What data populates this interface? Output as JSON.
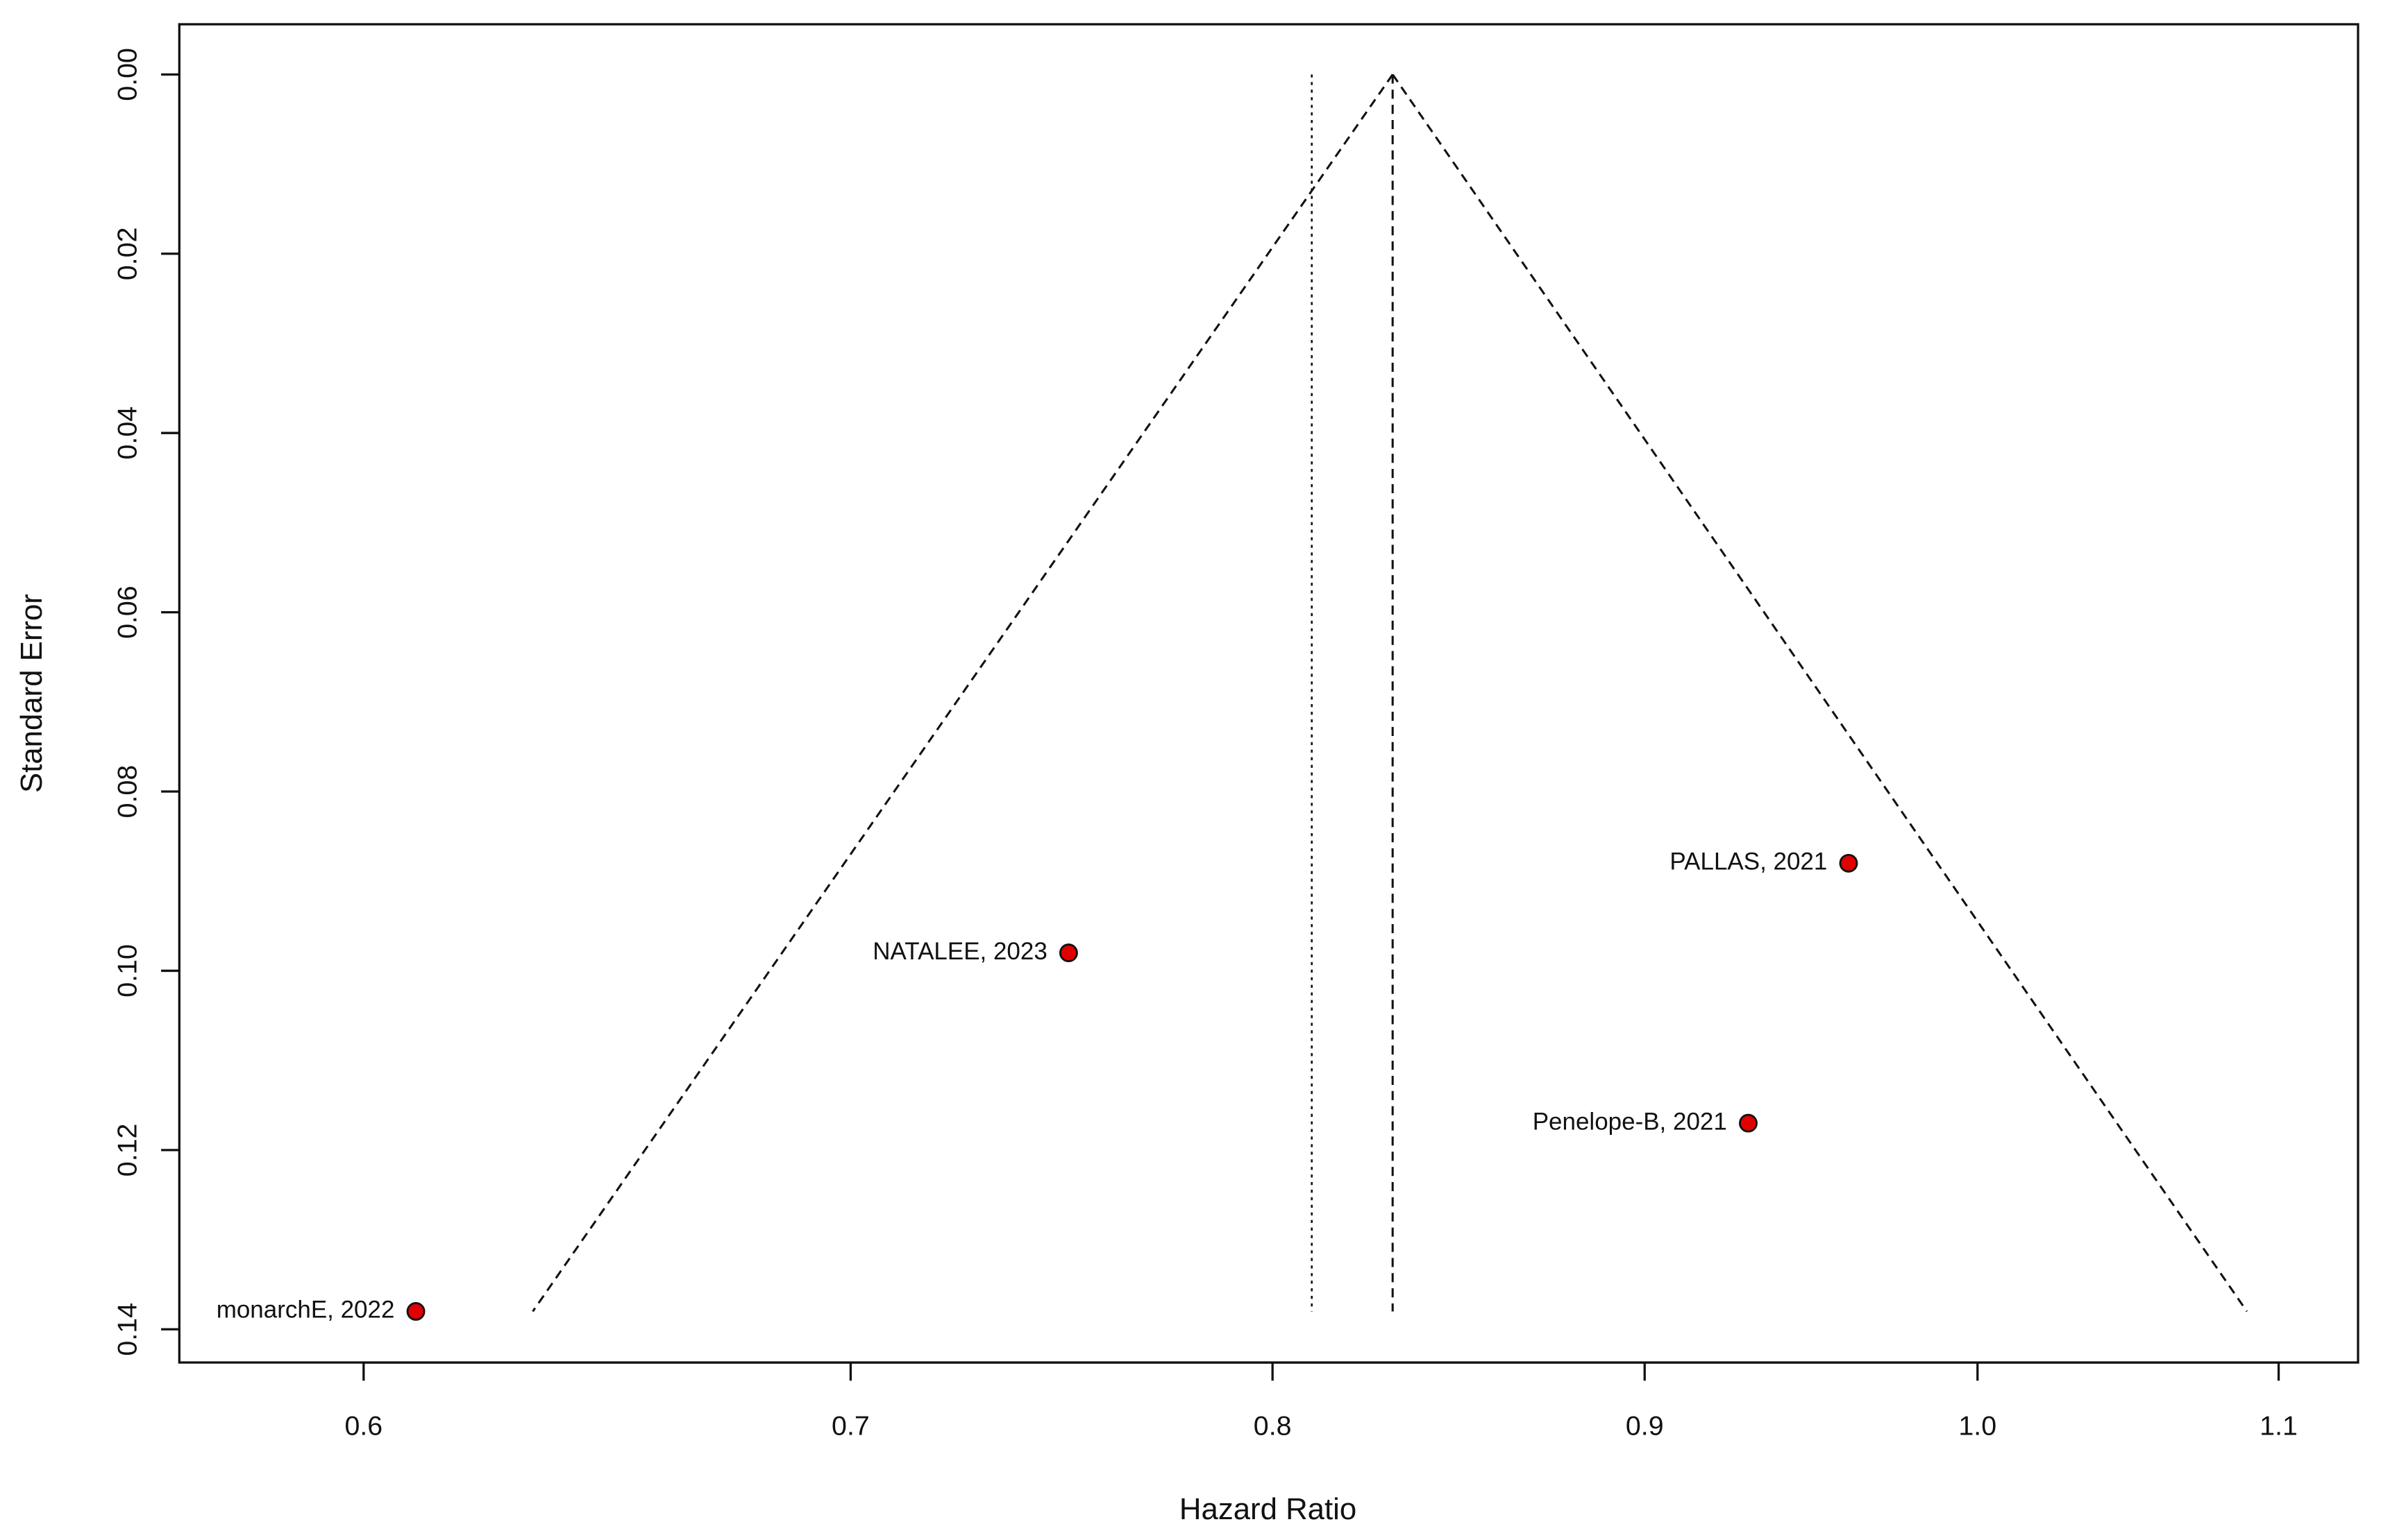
{
  "chart_data": {
    "type": "scatter",
    "x_label": "Hazard Ratio",
    "y_label": "Standard Error",
    "x_log": true,
    "y_reversed": true,
    "xlim": [
      0.566,
      1.128
    ],
    "ylim": [
      -0.0056,
      0.1437
    ],
    "xticks": [
      0.6,
      0.7,
      0.8,
      0.9,
      {
        "value": 1,
        "label": "1.0"
      },
      1.1
    ],
    "yticks": [
      {
        "value": 0,
        "label": "0.00"
      },
      {
        "value": 0.02,
        "label": "0.02"
      },
      {
        "value": 0.04,
        "label": "0.04"
      },
      {
        "value": 0.06,
        "label": "0.06"
      },
      {
        "value": 0.08,
        "label": "0.08"
      },
      {
        "value": 0.1,
        "label": "0.10"
      },
      {
        "value": 0.12,
        "label": "0.12"
      },
      {
        "value": 0.14,
        "label": "0.14"
      }
    ],
    "point_labels": [
      "PALLAS, 2021",
      "NATALEE, 2023",
      "Penelope-B, 2021",
      "monarchE, 2022"
    ],
    "x": [
      0.96,
      0.75,
      0.93,
      0.61
    ],
    "values": [
      0.088,
      0.098,
      0.117,
      0.138
    ],
    "color": "#e00000",
    "pooled_estimate": 0.831,
    "reference_line": 0.81,
    "funnel": {
      "se_max": 0.138,
      "left": 0.633,
      "right": 1.089
    }
  }
}
